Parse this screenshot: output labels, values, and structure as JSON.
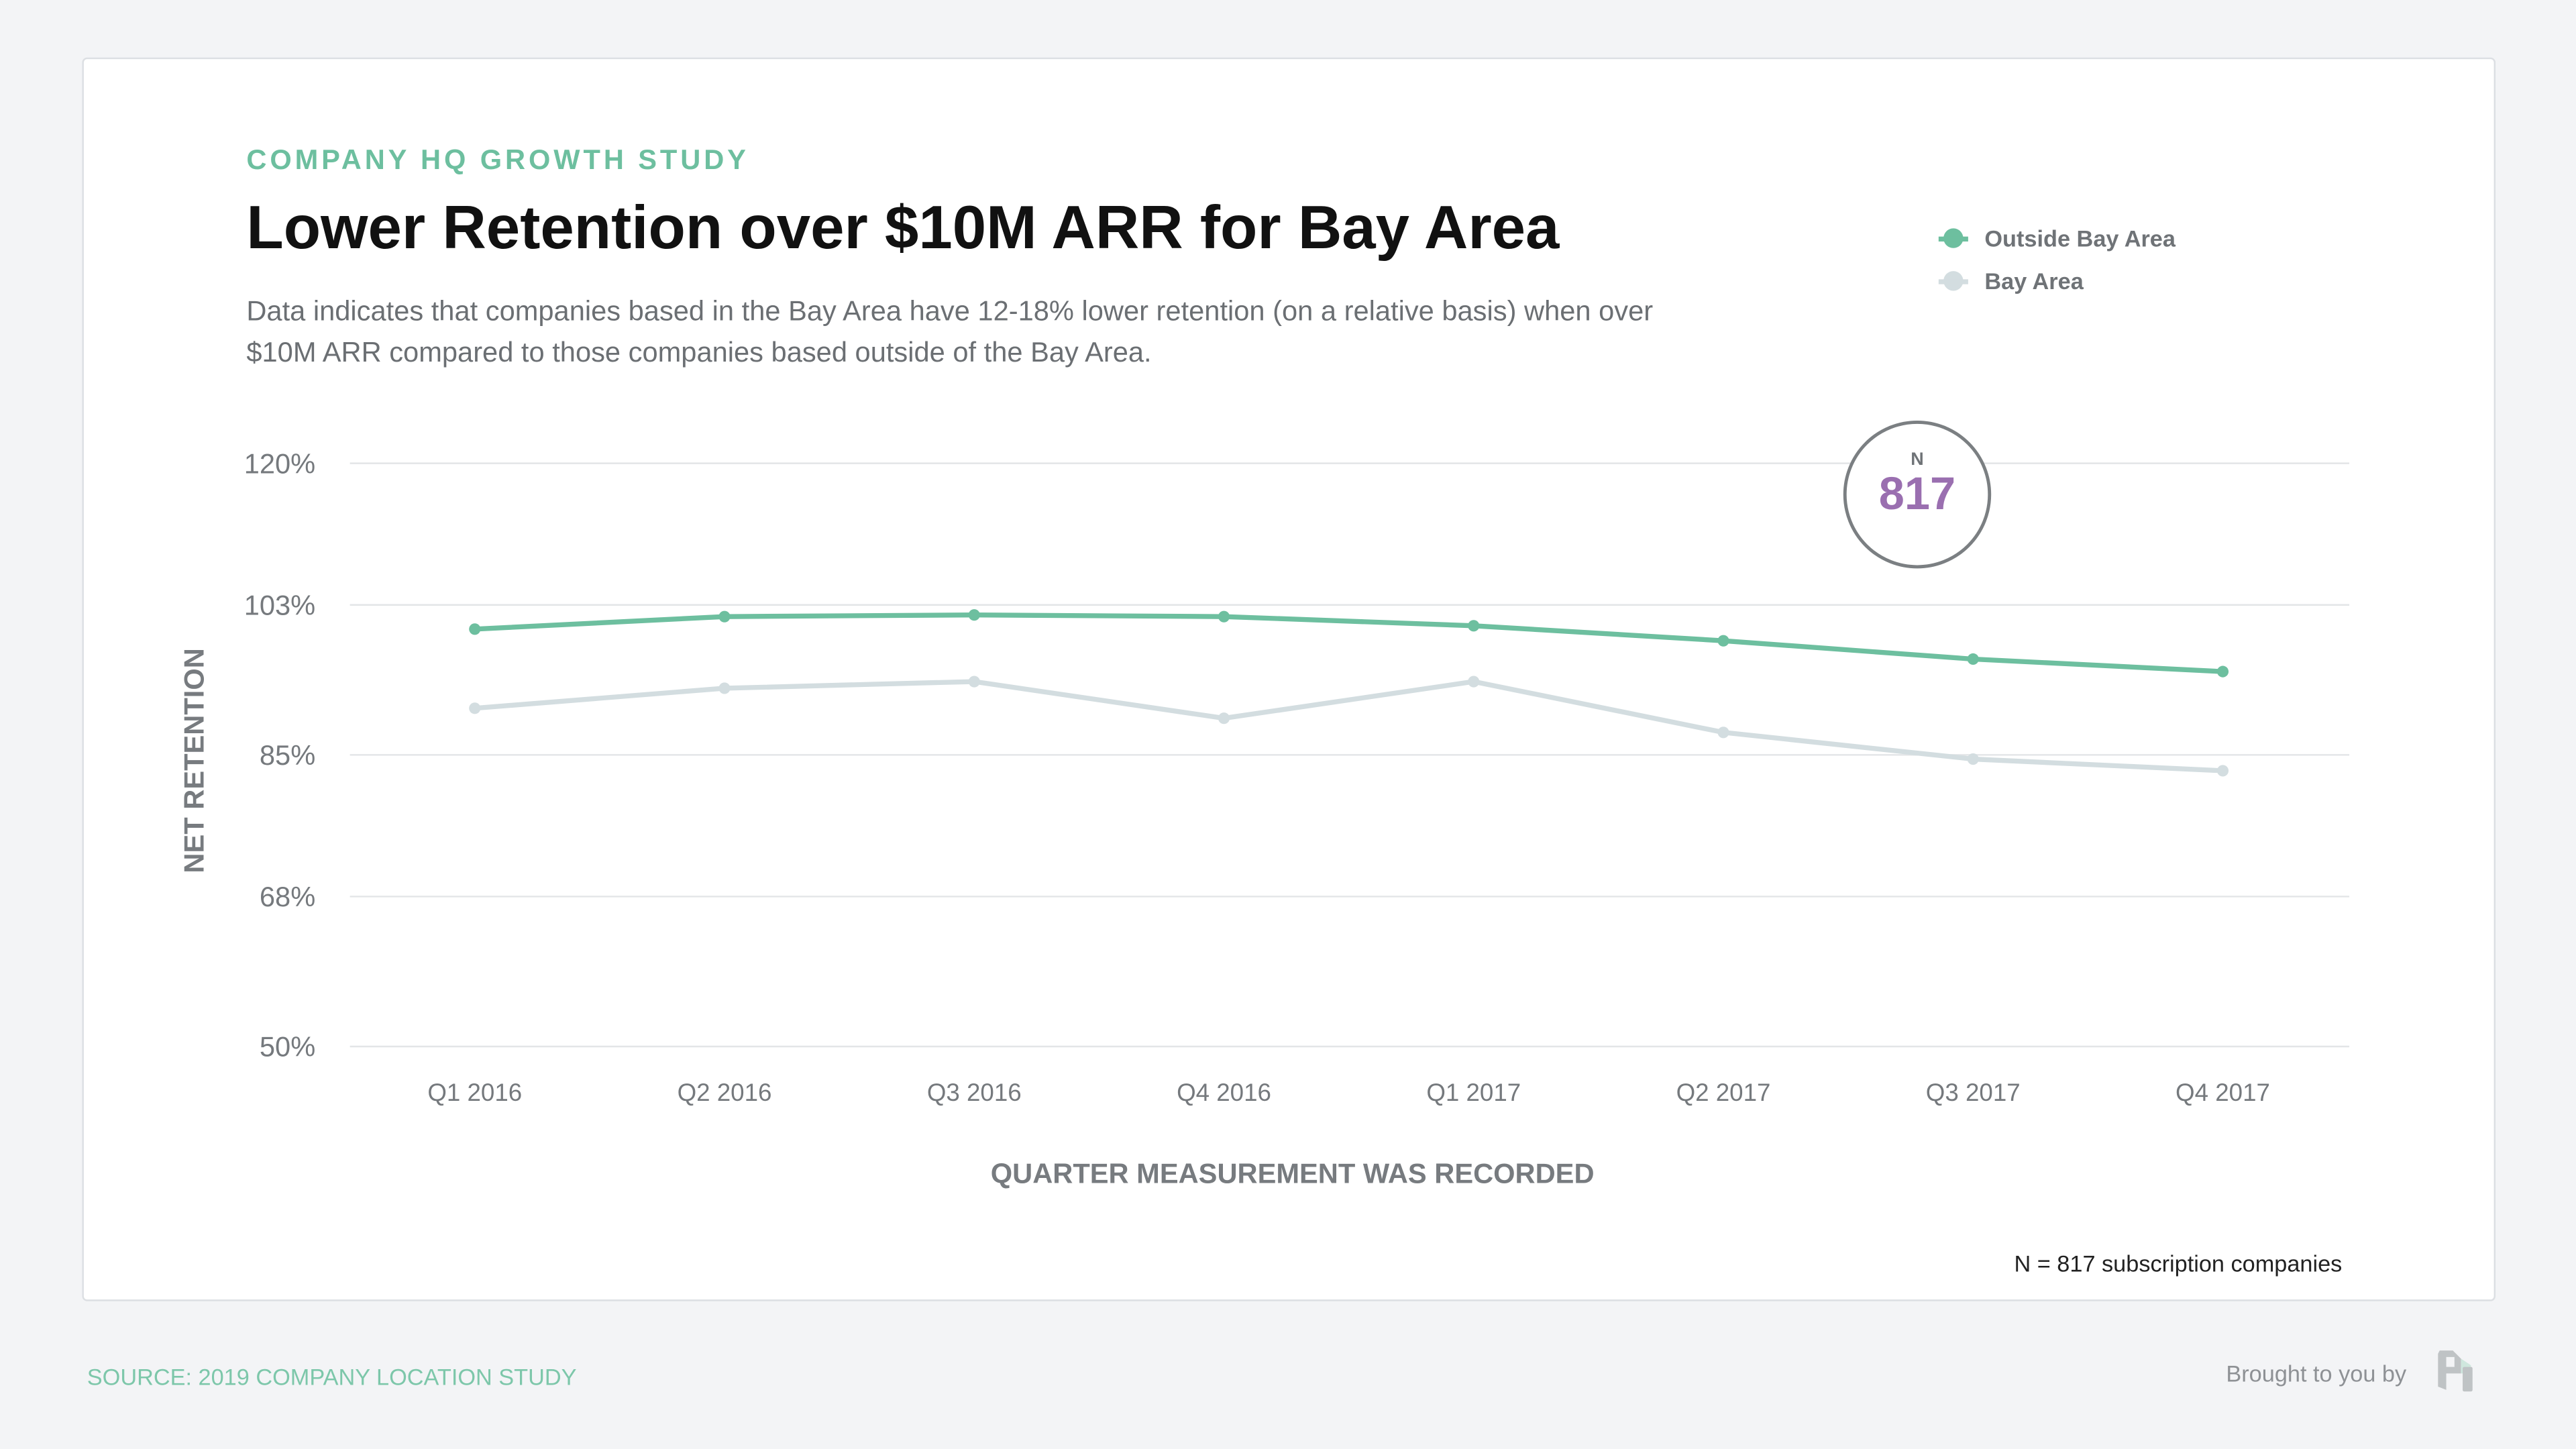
{
  "header": {
    "eyebrow": "COMPANY HQ GROWTH STUDY",
    "title": "Lower Retention over $10M ARR for Bay Area",
    "subtitle": "Data indicates that companies based in the Bay Area have 12-18% lower retention (on a relative basis) when over $10M ARR compared to those companies based outside of the Bay Area."
  },
  "badge": {
    "label": "N",
    "value": "817"
  },
  "footnote": "N = 817 subscription companies",
  "footer": {
    "source": "SOURCE: 2019 COMPANY LOCATION STUDY",
    "brought_by": "Brought to you by",
    "logo_letters": "P"
  },
  "colors": {
    "outside": "#6dbf9f",
    "bay": "#d3dde0",
    "accent": "#9a6fb0"
  },
  "chart_data": {
    "type": "line",
    "title": "Lower Retention over $10M ARR for Bay Area",
    "xlabel": "QUARTER MEASUREMENT WAS RECORDED",
    "ylabel": "NET RETENTION",
    "categories": [
      "Q1 2016",
      "Q2 2016",
      "Q3 2016",
      "Q4 2016",
      "Q1 2017",
      "Q2 2017",
      "Q3 2017",
      "Q4 2017"
    ],
    "ylim": [
      50,
      120
    ],
    "yticks": [
      50,
      68,
      85,
      103,
      120
    ],
    "ytick_labels": [
      "50%",
      "68%",
      "85%",
      "103%",
      "120%"
    ],
    "grid": true,
    "legend_position": "top-right",
    "series": [
      {
        "name": "Outside Bay Area",
        "color": "#6dbf9f",
        "values": [
          100.1,
          101.6,
          101.8,
          101.6,
          100.5,
          98.7,
          96.5,
          95.0
        ]
      },
      {
        "name": "Bay Area",
        "color": "#d3dde0",
        "values": [
          90.6,
          93.0,
          93.8,
          89.4,
          93.8,
          87.7,
          84.5,
          83.1
        ]
      }
    ]
  }
}
